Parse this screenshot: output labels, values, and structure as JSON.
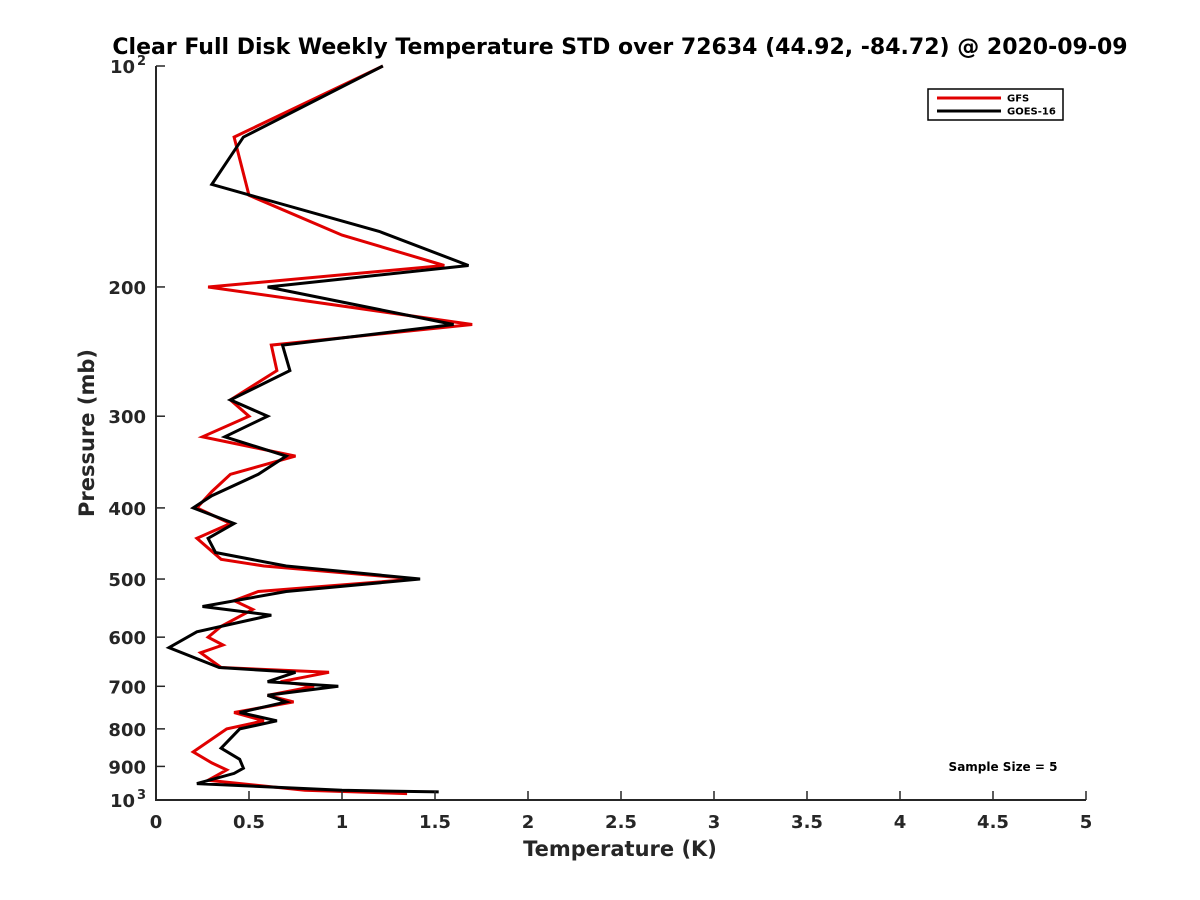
{
  "chart_data": {
    "type": "line",
    "title": "Clear Full Disk Weekly Temperature STD over 72634 (44.92, -84.72) @ 2020-09-09",
    "xlabel": "Temperature (K)",
    "ylabel": "Pressure (mb)",
    "xlim": [
      0,
      5
    ],
    "ylim": [
      100,
      1000
    ],
    "y_scale": "log",
    "y_reversed": true,
    "grid": false,
    "legend_position": "top-right",
    "x_ticks": [
      {
        "value": 0,
        "label": "0"
      },
      {
        "value": 0.5,
        "label": "0.5"
      },
      {
        "value": 1,
        "label": "1"
      },
      {
        "value": 1.5,
        "label": "1.5"
      },
      {
        "value": 2,
        "label": "2"
      },
      {
        "value": 2.5,
        "label": "2.5"
      },
      {
        "value": 3,
        "label": "3"
      },
      {
        "value": 3.5,
        "label": "3.5"
      },
      {
        "value": 4,
        "label": "4"
      },
      {
        "value": 4.5,
        "label": "4.5"
      },
      {
        "value": 5,
        "label": "5"
      }
    ],
    "y_ticks": [
      {
        "value": 100,
        "label": "10",
        "sup": "2"
      },
      {
        "value": 200,
        "label": "200",
        "sup": ""
      },
      {
        "value": 300,
        "label": "300",
        "sup": ""
      },
      {
        "value": 400,
        "label": "400",
        "sup": ""
      },
      {
        "value": 500,
        "label": "500",
        "sup": ""
      },
      {
        "value": 600,
        "label": "600",
        "sup": ""
      },
      {
        "value": 700,
        "label": "700",
        "sup": ""
      },
      {
        "value": 800,
        "label": "800",
        "sup": ""
      },
      {
        "value": 900,
        "label": "900",
        "sup": ""
      },
      {
        "value": 1000,
        "label": "10",
        "sup": "3"
      }
    ],
    "series": [
      {
        "name": "GFS",
        "color": "#e00000",
        "points": [
          [
            1.22,
            100
          ],
          [
            0.42,
            125
          ],
          [
            0.5,
            150
          ],
          [
            1.0,
            170
          ],
          [
            1.55,
            187
          ],
          [
            0.28,
            200
          ],
          [
            1.7,
            225
          ],
          [
            0.62,
            240
          ],
          [
            0.65,
            260
          ],
          [
            0.4,
            285
          ],
          [
            0.5,
            300
          ],
          [
            0.25,
            320
          ],
          [
            0.75,
            340
          ],
          [
            0.4,
            360
          ],
          [
            0.3,
            380
          ],
          [
            0.22,
            400
          ],
          [
            0.4,
            420
          ],
          [
            0.22,
            440
          ],
          [
            0.35,
            470
          ],
          [
            0.58,
            480
          ],
          [
            1.4,
            500
          ],
          [
            0.55,
            520
          ],
          [
            0.42,
            535
          ],
          [
            0.52,
            550
          ],
          [
            0.35,
            580
          ],
          [
            0.28,
            600
          ],
          [
            0.36,
            615
          ],
          [
            0.24,
            630
          ],
          [
            0.35,
            660
          ],
          [
            0.93,
            670
          ],
          [
            0.67,
            690
          ],
          [
            0.85,
            700
          ],
          [
            0.6,
            720
          ],
          [
            0.74,
            735
          ],
          [
            0.42,
            760
          ],
          [
            0.58,
            780
          ],
          [
            0.38,
            800
          ],
          [
            0.2,
            860
          ],
          [
            0.3,
            890
          ],
          [
            0.38,
            910
          ],
          [
            0.28,
            940
          ],
          [
            0.8,
            970
          ],
          [
            1.35,
            980
          ]
        ]
      },
      {
        "name": "GOES-16",
        "color": "#000000",
        "points": [
          [
            1.22,
            100
          ],
          [
            0.47,
            125
          ],
          [
            0.3,
            145
          ],
          [
            1.2,
            168
          ],
          [
            1.68,
            187
          ],
          [
            0.6,
            200
          ],
          [
            1.6,
            225
          ],
          [
            0.68,
            240
          ],
          [
            0.72,
            260
          ],
          [
            0.4,
            285
          ],
          [
            0.6,
            300
          ],
          [
            0.37,
            320
          ],
          [
            0.7,
            340
          ],
          [
            0.55,
            360
          ],
          [
            0.3,
            385
          ],
          [
            0.2,
            400
          ],
          [
            0.42,
            420
          ],
          [
            0.28,
            440
          ],
          [
            0.32,
            460
          ],
          [
            0.7,
            480
          ],
          [
            1.42,
            500
          ],
          [
            0.7,
            520
          ],
          [
            0.25,
            545
          ],
          [
            0.62,
            560
          ],
          [
            0.22,
            590
          ],
          [
            0.07,
            620
          ],
          [
            0.34,
            660
          ],
          [
            0.75,
            670
          ],
          [
            0.6,
            690
          ],
          [
            0.98,
            700
          ],
          [
            0.6,
            720
          ],
          [
            0.7,
            735
          ],
          [
            0.45,
            760
          ],
          [
            0.65,
            780
          ],
          [
            0.45,
            800
          ],
          [
            0.35,
            850
          ],
          [
            0.45,
            880
          ],
          [
            0.47,
            905
          ],
          [
            0.42,
            920
          ],
          [
            0.22,
            950
          ],
          [
            1.0,
            970
          ],
          [
            1.52,
            975
          ]
        ]
      }
    ],
    "annotations": [
      {
        "text": "Sample Size = 5",
        "position": "bottom-right"
      }
    ]
  }
}
